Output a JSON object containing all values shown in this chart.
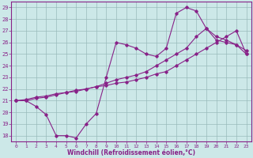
{
  "xlabel": "Windchill (Refroidissement éolien,°C)",
  "bg_color": "#cce8e8",
  "line_color": "#882288",
  "grid_color": "#99bbbb",
  "xlim": [
    -0.5,
    23.5
  ],
  "ylim": [
    17.5,
    29.5
  ],
  "xticks": [
    0,
    1,
    2,
    3,
    4,
    5,
    6,
    7,
    8,
    9,
    10,
    11,
    12,
    13,
    14,
    15,
    16,
    17,
    18,
    19,
    20,
    21,
    22,
    23
  ],
  "yticks": [
    18,
    19,
    20,
    21,
    22,
    23,
    24,
    25,
    26,
    27,
    28,
    29
  ],
  "line1_x": [
    0,
    1,
    2,
    3,
    4,
    5,
    6,
    7,
    8,
    9,
    10,
    11,
    12,
    13,
    14,
    15,
    16,
    17,
    18,
    19,
    20,
    21,
    22,
    23
  ],
  "line1_y": [
    21.0,
    21.0,
    20.5,
    19.8,
    18.0,
    18.0,
    17.8,
    19.0,
    19.9,
    23.0,
    26.0,
    25.8,
    25.5,
    25.0,
    24.8,
    25.5,
    28.5,
    29.0,
    28.7,
    27.2,
    26.2,
    26.0,
    25.8,
    25.0
  ],
  "line2_x": [
    0,
    1,
    2,
    3,
    4,
    5,
    6,
    7,
    8,
    9,
    10,
    11,
    12,
    13,
    14,
    15,
    16,
    17,
    18,
    19,
    20,
    21,
    22,
    23
  ],
  "line2_y": [
    21.0,
    21.1,
    21.3,
    21.4,
    21.6,
    21.7,
    21.9,
    22.0,
    22.2,
    22.3,
    22.5,
    22.6,
    22.8,
    23.0,
    23.3,
    23.5,
    24.0,
    24.5,
    25.0,
    25.5,
    26.0,
    26.5,
    27.0,
    25.0
  ],
  "line3_x": [
    0,
    1,
    2,
    3,
    4,
    5,
    6,
    7,
    8,
    9,
    10,
    11,
    12,
    13,
    14,
    15,
    16,
    17,
    18,
    19,
    20,
    21,
    22,
    23
  ],
  "line3_y": [
    21.0,
    21.0,
    21.2,
    21.3,
    21.5,
    21.7,
    21.8,
    22.0,
    22.2,
    22.5,
    22.8,
    23.0,
    23.2,
    23.5,
    24.0,
    24.5,
    25.0,
    25.5,
    26.5,
    27.2,
    26.5,
    26.2,
    25.8,
    25.3
  ]
}
